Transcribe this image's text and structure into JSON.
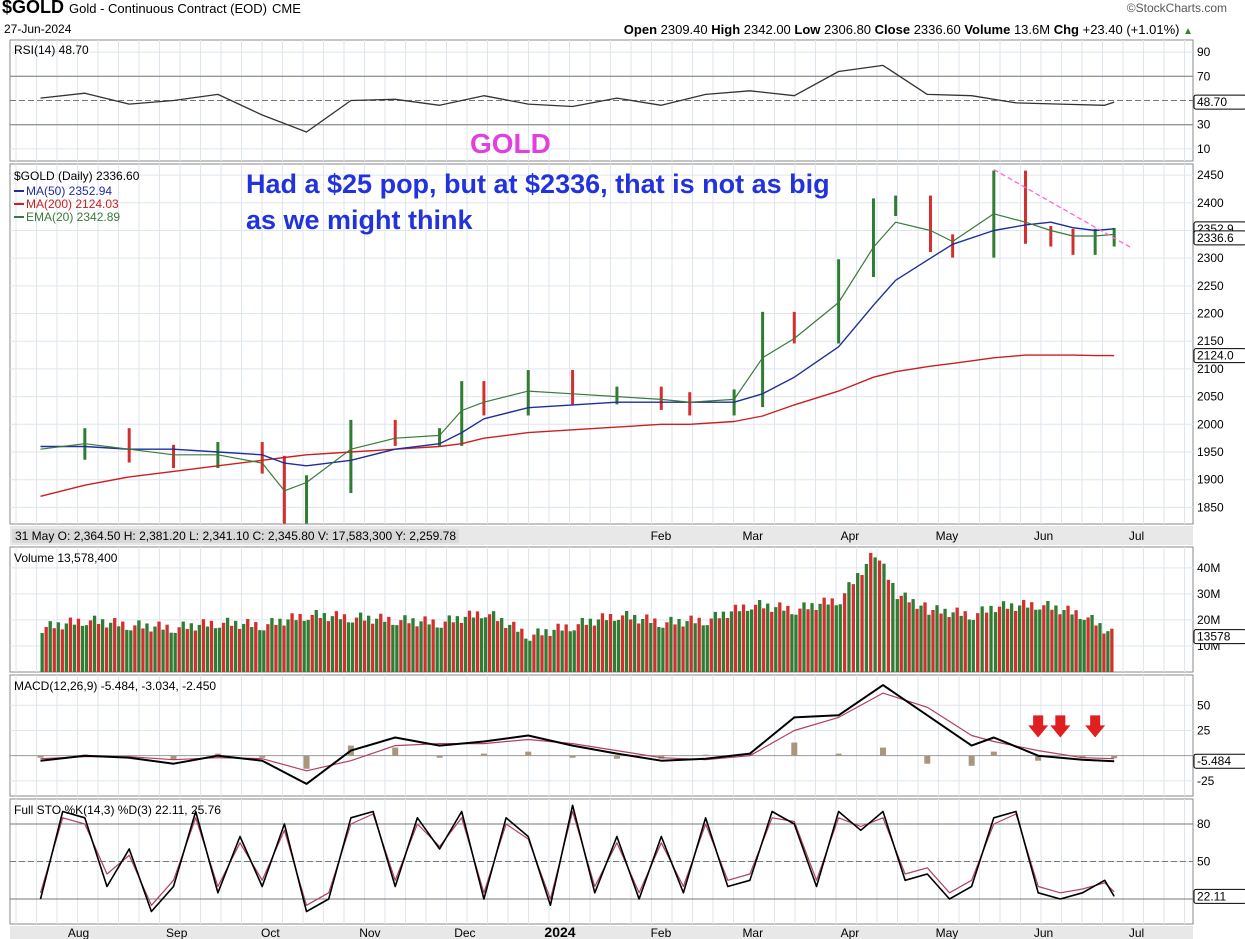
{
  "header": {
    "symbol": "$GOLD",
    "name": "Gold - Continuous Contract (EOD)",
    "exchange": "CME",
    "date": "27-Jun-2024",
    "brand": "©StockCharts.com",
    "open_label": "Open",
    "open": "2309.40",
    "high_label": "High",
    "high": "2342.00",
    "low_label": "Low",
    "low": "2306.80",
    "close_label": "Close",
    "close": "2336.60",
    "volume_label": "Volume",
    "volume": "13.6M",
    "chg_label": "Chg",
    "chg": "+23.40 (+1.01%)"
  },
  "annotations": {
    "gold_label": "GOLD",
    "note": "Had a $25 pop, but at $2336, that is not as big as we might think"
  },
  "colors": {
    "up": "#2e7d32",
    "down": "#d32f2f",
    "ma50": "#1f2f9a",
    "ma200": "#cc1f1f",
    "ema20": "#3a7a3a",
    "rsi": "#333333",
    "rsi_fill": "#b7a58f",
    "macd": "#000000",
    "signal": "#b04060",
    "hist": "#a8967e",
    "trend": "#ff66dd",
    "annotation_blue": "#2233dd",
    "annotation_pink": "#e040e0"
  },
  "chart_data": [
    {
      "panel": "rsi",
      "type": "line",
      "label": "RSI(14) 48.70",
      "ticks": [
        "90",
        "70",
        "30",
        "10"
      ],
      "last_tag": "48.70",
      "ylim": [
        0,
        100
      ],
      "x": [
        "Jul-24",
        "Aug-07",
        "Aug-21",
        "Sep-04",
        "Sep-18",
        "Oct-02",
        "Oct-16",
        "Oct-30",
        "Nov-13",
        "Nov-27",
        "Dec-11",
        "Dec-25",
        "Jan-08",
        "Jan-22",
        "Feb-05",
        "Feb-19",
        "Mar-04",
        "Mar-18",
        "Apr-01",
        "Apr-15",
        "Apr-29",
        "May-13",
        "May-27",
        "Jun-10",
        "Jun-24",
        "Jun-27"
      ],
      "values": [
        52,
        56,
        47,
        50,
        55,
        38,
        24,
        50,
        51,
        46,
        54,
        47,
        45,
        52,
        46,
        55,
        58,
        54,
        74,
        79,
        55,
        54,
        48,
        47,
        46,
        48.7
      ]
    },
    {
      "panel": "price",
      "type": "bar",
      "label": "$GOLD (Daily) 2336.60",
      "legend": [
        {
          "name": "MA(50) 2352.94",
          "color": "#1f2f9a"
        },
        {
          "name": "MA(200) 2124.03",
          "color": "#cc1f1f"
        },
        {
          "name": "EMA(20) 2342.89",
          "color": "#3a7a3a"
        }
      ],
      "ticks": [
        "2450",
        "2400",
        "2350",
        "2300",
        "2250",
        "2200",
        "2150",
        "2100",
        "2050",
        "2000",
        "1950",
        "1900",
        "1850"
      ],
      "tags": [
        "2352.9",
        "2336.6",
        "2124.0"
      ],
      "ylim": [
        1820,
        2470
      ],
      "x": [
        "Jul-24",
        "Aug-07",
        "Aug-21",
        "Sep-04",
        "Sep-18",
        "Oct-02",
        "Oct-09",
        "Oct-16",
        "Oct-30",
        "Nov-13",
        "Nov-27",
        "Dec-04",
        "Dec-11",
        "Dec-25",
        "Jan-08",
        "Jan-22",
        "Feb-05",
        "Feb-14",
        "Feb-28",
        "Mar-08",
        "Mar-18",
        "Apr-01",
        "Apr-12",
        "Apr-19",
        "Apr-30",
        "May-07",
        "May-20",
        "May-30",
        "Jun-07",
        "Jun-14",
        "Jun-21",
        "Jun-27"
      ],
      "close": [
        1950,
        1975,
        1945,
        1935,
        1950,
        1925,
        1835,
        1890,
        1990,
        1975,
        1975,
        2060,
        2030,
        2080,
        2050,
        2050,
        2040,
        2030,
        2045,
        2185,
        2160,
        2280,
        2390,
        2395,
        2325,
        2315,
        2440,
        2340,
        2335,
        2320,
        2335,
        2336.6
      ],
      "ma50": [
        1960,
        1960,
        1955,
        1955,
        1950,
        1945,
        1930,
        1925,
        1935,
        1955,
        1965,
        1985,
        2010,
        2030,
        2035,
        2040,
        2040,
        2040,
        2040,
        2055,
        2085,
        2140,
        2215,
        2260,
        2300,
        2325,
        2350,
        2360,
        2365,
        2355,
        2350,
        2352.94
      ],
      "ma200": [
        1870,
        1890,
        1905,
        1915,
        1925,
        1935,
        1940,
        1945,
        1950,
        1955,
        1960,
        1965,
        1975,
        1985,
        1990,
        1995,
        2000,
        2000,
        2005,
        2015,
        2035,
        2060,
        2085,
        2095,
        2105,
        2110,
        2120,
        2125,
        2125,
        2125,
        2124,
        2124.03
      ],
      "ema20": [
        1955,
        1965,
        1955,
        1945,
        1945,
        1930,
        1880,
        1895,
        1955,
        1975,
        1980,
        2025,
        2040,
        2060,
        2055,
        2050,
        2045,
        2040,
        2045,
        2120,
        2155,
        2220,
        2320,
        2365,
        2350,
        2330,
        2380,
        2365,
        2350,
        2340,
        2340,
        2342.89
      ],
      "trendline": [
        {
          "x": "May-20",
          "y": 2460
        },
        {
          "x": "Jul-02",
          "y": 2320
        }
      ]
    },
    {
      "panel": "date_axis_upper",
      "ohlcv_strip": "31 May O: 2,364.50 H: 2,381.20 L: 2,341.10 C: 2,345.80 V: 17,583,300 Y: 2,259.78",
      "month_labels": [
        "Feb",
        "Mar",
        "Apr",
        "May",
        "Jun",
        "Jul"
      ]
    },
    {
      "panel": "volume",
      "type": "bar",
      "label": "Volume 13,578,400",
      "ticks": [
        "40M",
        "30M",
        "20M",
        "10M"
      ],
      "last_tag": "13578",
      "ylim": [
        0,
        48
      ],
      "x": [
        "Jul-24",
        "Aug-07",
        "Aug-21",
        "Sep-04",
        "Sep-18",
        "Oct-02",
        "Oct-16",
        "Oct-30",
        "Nov-13",
        "Nov-27",
        "Dec-11",
        "Dec-25",
        "Jan-08",
        "Jan-22",
        "Feb-05",
        "Feb-19",
        "Mar-04",
        "Mar-18",
        "Apr-01",
        "Apr-12",
        "Apr-19",
        "Apr-29",
        "May-13",
        "May-20",
        "Jun-03",
        "Jun-17",
        "Jun-27"
      ],
      "values": [
        17,
        20,
        18,
        17,
        19,
        18,
        22,
        21,
        20,
        19,
        23,
        14,
        18,
        22,
        19,
        20,
        26,
        24,
        28,
        46,
        30,
        24,
        22,
        25,
        26,
        22,
        13.58
      ]
    },
    {
      "panel": "macd",
      "type": "line",
      "label": "MACD(12,26,9) -5.484, -3.034, -2.450",
      "ticks": [
        "50",
        "25",
        "-25"
      ],
      "last_tag": "-5.484",
      "ylim": [
        -40,
        80
      ],
      "x": [
        "Jul-24",
        "Aug-07",
        "Aug-21",
        "Sep-04",
        "Sep-18",
        "Oct-02",
        "Oct-16",
        "Oct-30",
        "Nov-13",
        "Nov-27",
        "Dec-11",
        "Dec-25",
        "Jan-08",
        "Jan-22",
        "Feb-05",
        "Feb-19",
        "Mar-04",
        "Mar-18",
        "Apr-01",
        "Apr-15",
        "Apr-29",
        "May-13",
        "May-20",
        "Jun-03",
        "Jun-17",
        "Jun-27"
      ],
      "macd": [
        -5,
        0,
        -2,
        -8,
        0,
        -5,
        -28,
        5,
        18,
        10,
        14,
        20,
        10,
        2,
        -5,
        -3,
        2,
        38,
        40,
        70,
        40,
        10,
        18,
        0,
        -4,
        -5.484
      ],
      "signal": [
        -3,
        -1,
        -1,
        -4,
        -2,
        -3,
        -15,
        -5,
        10,
        12,
        12,
        16,
        12,
        5,
        -2,
        -4,
        0,
        25,
        38,
        62,
        48,
        20,
        14,
        5,
        -2,
        -3.034
      ],
      "histogram": [
        -2,
        1,
        -1,
        -4,
        2,
        -2,
        -13,
        10,
        8,
        -2,
        2,
        4,
        -2,
        -3,
        -3,
        1,
        2,
        13,
        2,
        8,
        -8,
        -10,
        4,
        -5,
        -2,
        -2.45
      ],
      "signals": [
        "Jun-03",
        "Jun-10",
        "Jun-21"
      ]
    },
    {
      "panel": "stochastic",
      "type": "line",
      "label": "Full STO %K(14,3) %D(3) 22.11, 25.76",
      "ticks": [
        "80",
        "50",
        "20"
      ],
      "last_tag": "22.11",
      "ylim": [
        0,
        100
      ],
      "x": [
        "Jul-24",
        "Jul-31",
        "Aug-07",
        "Aug-14",
        "Aug-21",
        "Aug-28",
        "Sep-04",
        "Sep-11",
        "Sep-18",
        "Sep-25",
        "Oct-02",
        "Oct-09",
        "Oct-16",
        "Oct-23",
        "Oct-30",
        "Nov-06",
        "Nov-13",
        "Nov-20",
        "Nov-27",
        "Dec-04",
        "Dec-11",
        "Dec-18",
        "Dec-25",
        "Jan-01",
        "Jan-08",
        "Jan-15",
        "Jan-22",
        "Jan-29",
        "Feb-05",
        "Feb-12",
        "Feb-19",
        "Feb-26",
        "Mar-04",
        "Mar-11",
        "Mar-18",
        "Mar-25",
        "Apr-01",
        "Apr-08",
        "Apr-15",
        "Apr-22",
        "Apr-29",
        "May-06",
        "May-13",
        "May-20",
        "May-27",
        "Jun-03",
        "Jun-10",
        "Jun-17",
        "Jun-24",
        "Jun-27"
      ],
      "k": [
        20,
        90,
        85,
        30,
        60,
        10,
        30,
        90,
        25,
        70,
        30,
        80,
        10,
        20,
        85,
        90,
        30,
        85,
        60,
        90,
        20,
        85,
        70,
        15,
        95,
        25,
        70,
        20,
        70,
        25,
        85,
        30,
        35,
        90,
        80,
        30,
        90,
        75,
        90,
        35,
        40,
        20,
        30,
        85,
        90,
        25,
        20,
        25,
        35,
        22.11
      ],
      "d": [
        25,
        85,
        80,
        40,
        55,
        15,
        35,
        85,
        30,
        65,
        35,
        75,
        15,
        25,
        80,
        88,
        35,
        80,
        62,
        85,
        25,
        80,
        68,
        20,
        90,
        30,
        65,
        25,
        65,
        30,
        80,
        35,
        40,
        85,
        82,
        35,
        85,
        78,
        85,
        40,
        45,
        25,
        35,
        80,
        88,
        30,
        25,
        28,
        33,
        25.76
      ]
    },
    {
      "panel": "date_axis_lower",
      "month_labels": [
        "Aug",
        "Sep",
        "Oct",
        "Nov",
        "Dec",
        "2024",
        "Feb",
        "Mar",
        "Apr",
        "May",
        "Jun",
        "Jul"
      ]
    }
  ]
}
